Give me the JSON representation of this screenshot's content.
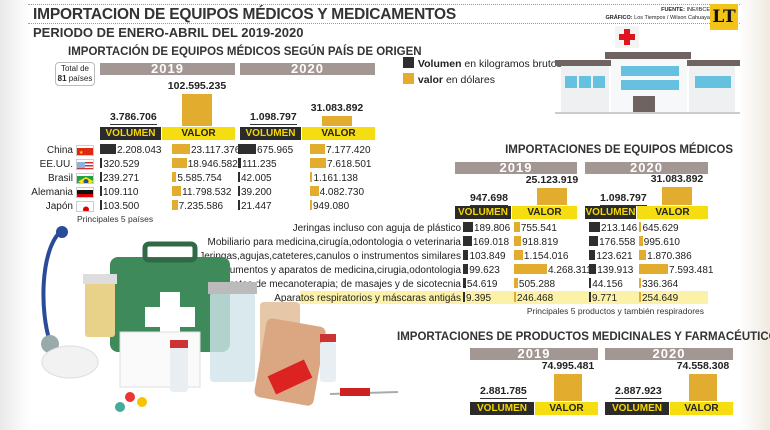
{
  "header": {
    "title": "IMPORTACION DE EQUIPOS MÉDICOS Y MEDICAMENTOS",
    "subtitle": "PERIODO DE ENERO-ABRIL DEL 2019-2020",
    "source_label": "FUENTE:",
    "source": "INE/IBCE",
    "graphic_label": "GRÁFICO:",
    "graphic": "Los Tiempos / Wilson Cahuaya",
    "logo": "LT"
  },
  "legend": {
    "volume_bold": "Volumen",
    "volume_rest": " en kilogramos brutos",
    "value_bold": "valor",
    "value_rest": " en dólares",
    "colors": {
      "volume": "#2e2e2e",
      "value": "#e2ad2f"
    }
  },
  "labels": {
    "volumen": "VOLUMEN",
    "valor": "VALOR",
    "y2019": "2019",
    "y2020": "2020"
  },
  "chart_data": [
    {
      "type": "bar",
      "title": "IMPORTACIÓN DE EQUIPOS MÉDICOS SEGÚN PAÍS DE ORIGEN",
      "total_note_1": "Total de",
      "total_note_2": "81",
      "total_note_3": " países",
      "footnote": "Principales 5 países",
      "totals": {
        "2019": {
          "volumen": "3.786.706",
          "valor": "102.595.235"
        },
        "2020": {
          "volumen": "1.098.797",
          "valor": "31.083.892"
        }
      },
      "totals_num": {
        "2019": {
          "volumen": 3786706,
          "valor": 102595235
        },
        "2020": {
          "volumen": 1098797,
          "valor": 31083892
        }
      },
      "categories": [
        "China",
        "EE.UU.",
        "Brasil",
        "Alemania",
        "Japón"
      ],
      "flags": [
        "china-flag",
        "usa-flag",
        "brazil-flag",
        "germany-flag",
        "japan-flag"
      ],
      "series": [
        {
          "name": "2019 VOLUMEN",
          "values": [
            2208043,
            320529,
            239271,
            109110,
            103500
          ],
          "labels": [
            "2.208.043",
            "320.529",
            "239.271",
            "109.110",
            "103.500"
          ]
        },
        {
          "name": "2019 VALOR",
          "values": [
            23117376,
            18946582,
            5585754,
            11798532,
            7235586
          ],
          "labels": [
            "23.117.376",
            "18.946.582",
            "5.585.754",
            "11.798.532",
            "7.235.586"
          ]
        },
        {
          "name": "2020 VOLUMEN",
          "values": [
            675965,
            111235,
            42005,
            39200,
            21447
          ],
          "labels": [
            "675.965",
            "111.235",
            "42.005",
            "39.200",
            "21.447"
          ]
        },
        {
          "name": "2020 VALOR",
          "values": [
            7177420,
            7618501,
            1161138,
            4082730,
            949080
          ],
          "labels": [
            "7.177.420",
            "7.618.501",
            "1.161.138",
            "4.082.730",
            "949.080"
          ]
        }
      ]
    },
    {
      "type": "bar",
      "title": "IMPORTACIONES DE EQUIPOS MÉDICOS",
      "footnote": "Principales 5 productos y también respiradores",
      "totals": {
        "2019": {
          "volumen": "947.698",
          "valor": "25.123.919"
        },
        "2020": {
          "volumen": "1.098.797",
          "valor": "31.083.892"
        }
      },
      "categories": [
        "Jeringas incluso con aguja de plástico",
        "Mobiliario para medicina,cirugía,odontologia o veterinaria",
        "Jeringas,agujas,cateteres,canulos o instrumentos similares",
        "Instrumentos y aparatos de medicina,cirugia,odontologia",
        "Aparatos de mecanoterapia; de  masajes y de sicotecnia",
        "Aparatos respiratorios y máscaras antigás"
      ],
      "highlighted": "Aparatos respiratorios y máscaras antigás",
      "highlight_color": "#fbf1a8",
      "series": [
        {
          "name": "2019 VOLUMEN",
          "values": [
            189806,
            169018,
            103849,
            99623,
            54619,
            9395
          ],
          "labels": [
            "189.806",
            "169.018",
            "103.849",
            "99.623",
            "54.619",
            "9.395"
          ]
        },
        {
          "name": "2019 VALOR",
          "values": [
            755541,
            918819,
            1154016,
            4268311,
            505288,
            246468
          ],
          "labels": [
            "755.541",
            "918.819",
            "1.154.016",
            "4.268.311",
            "505.288",
            "246.468"
          ]
        },
        {
          "name": "2020 VOLUMEN",
          "values": [
            213146,
            176558,
            123621,
            139913,
            44156,
            9771
          ],
          "labels": [
            "213.146",
            "176.558",
            "123.621",
            "139.913",
            "44.156",
            "9.771"
          ]
        },
        {
          "name": "2020 VALOR",
          "values": [
            645629,
            995610,
            1870386,
            7593481,
            336364,
            254649
          ],
          "labels": [
            "645.629",
            "995.610",
            "1.870.386",
            "7.593.481",
            "336.364",
            "254.649"
          ]
        }
      ]
    },
    {
      "type": "bar",
      "title": "IMPORTACIONES DE PRODUCTOS MEDICINALES Y FARMACÉUTICOS",
      "totals": {
        "2019": {
          "volumen": "2.881.785",
          "valor": "74.995.481"
        },
        "2020": {
          "volumen": "2.887.923",
          "valor": "74.558.308"
        }
      },
      "totals_num": {
        "2019": {
          "volumen": 2881785,
          "valor": 74995481
        },
        "2020": {
          "volumen": 2887923,
          "valor": 74558308
        }
      }
    }
  ]
}
